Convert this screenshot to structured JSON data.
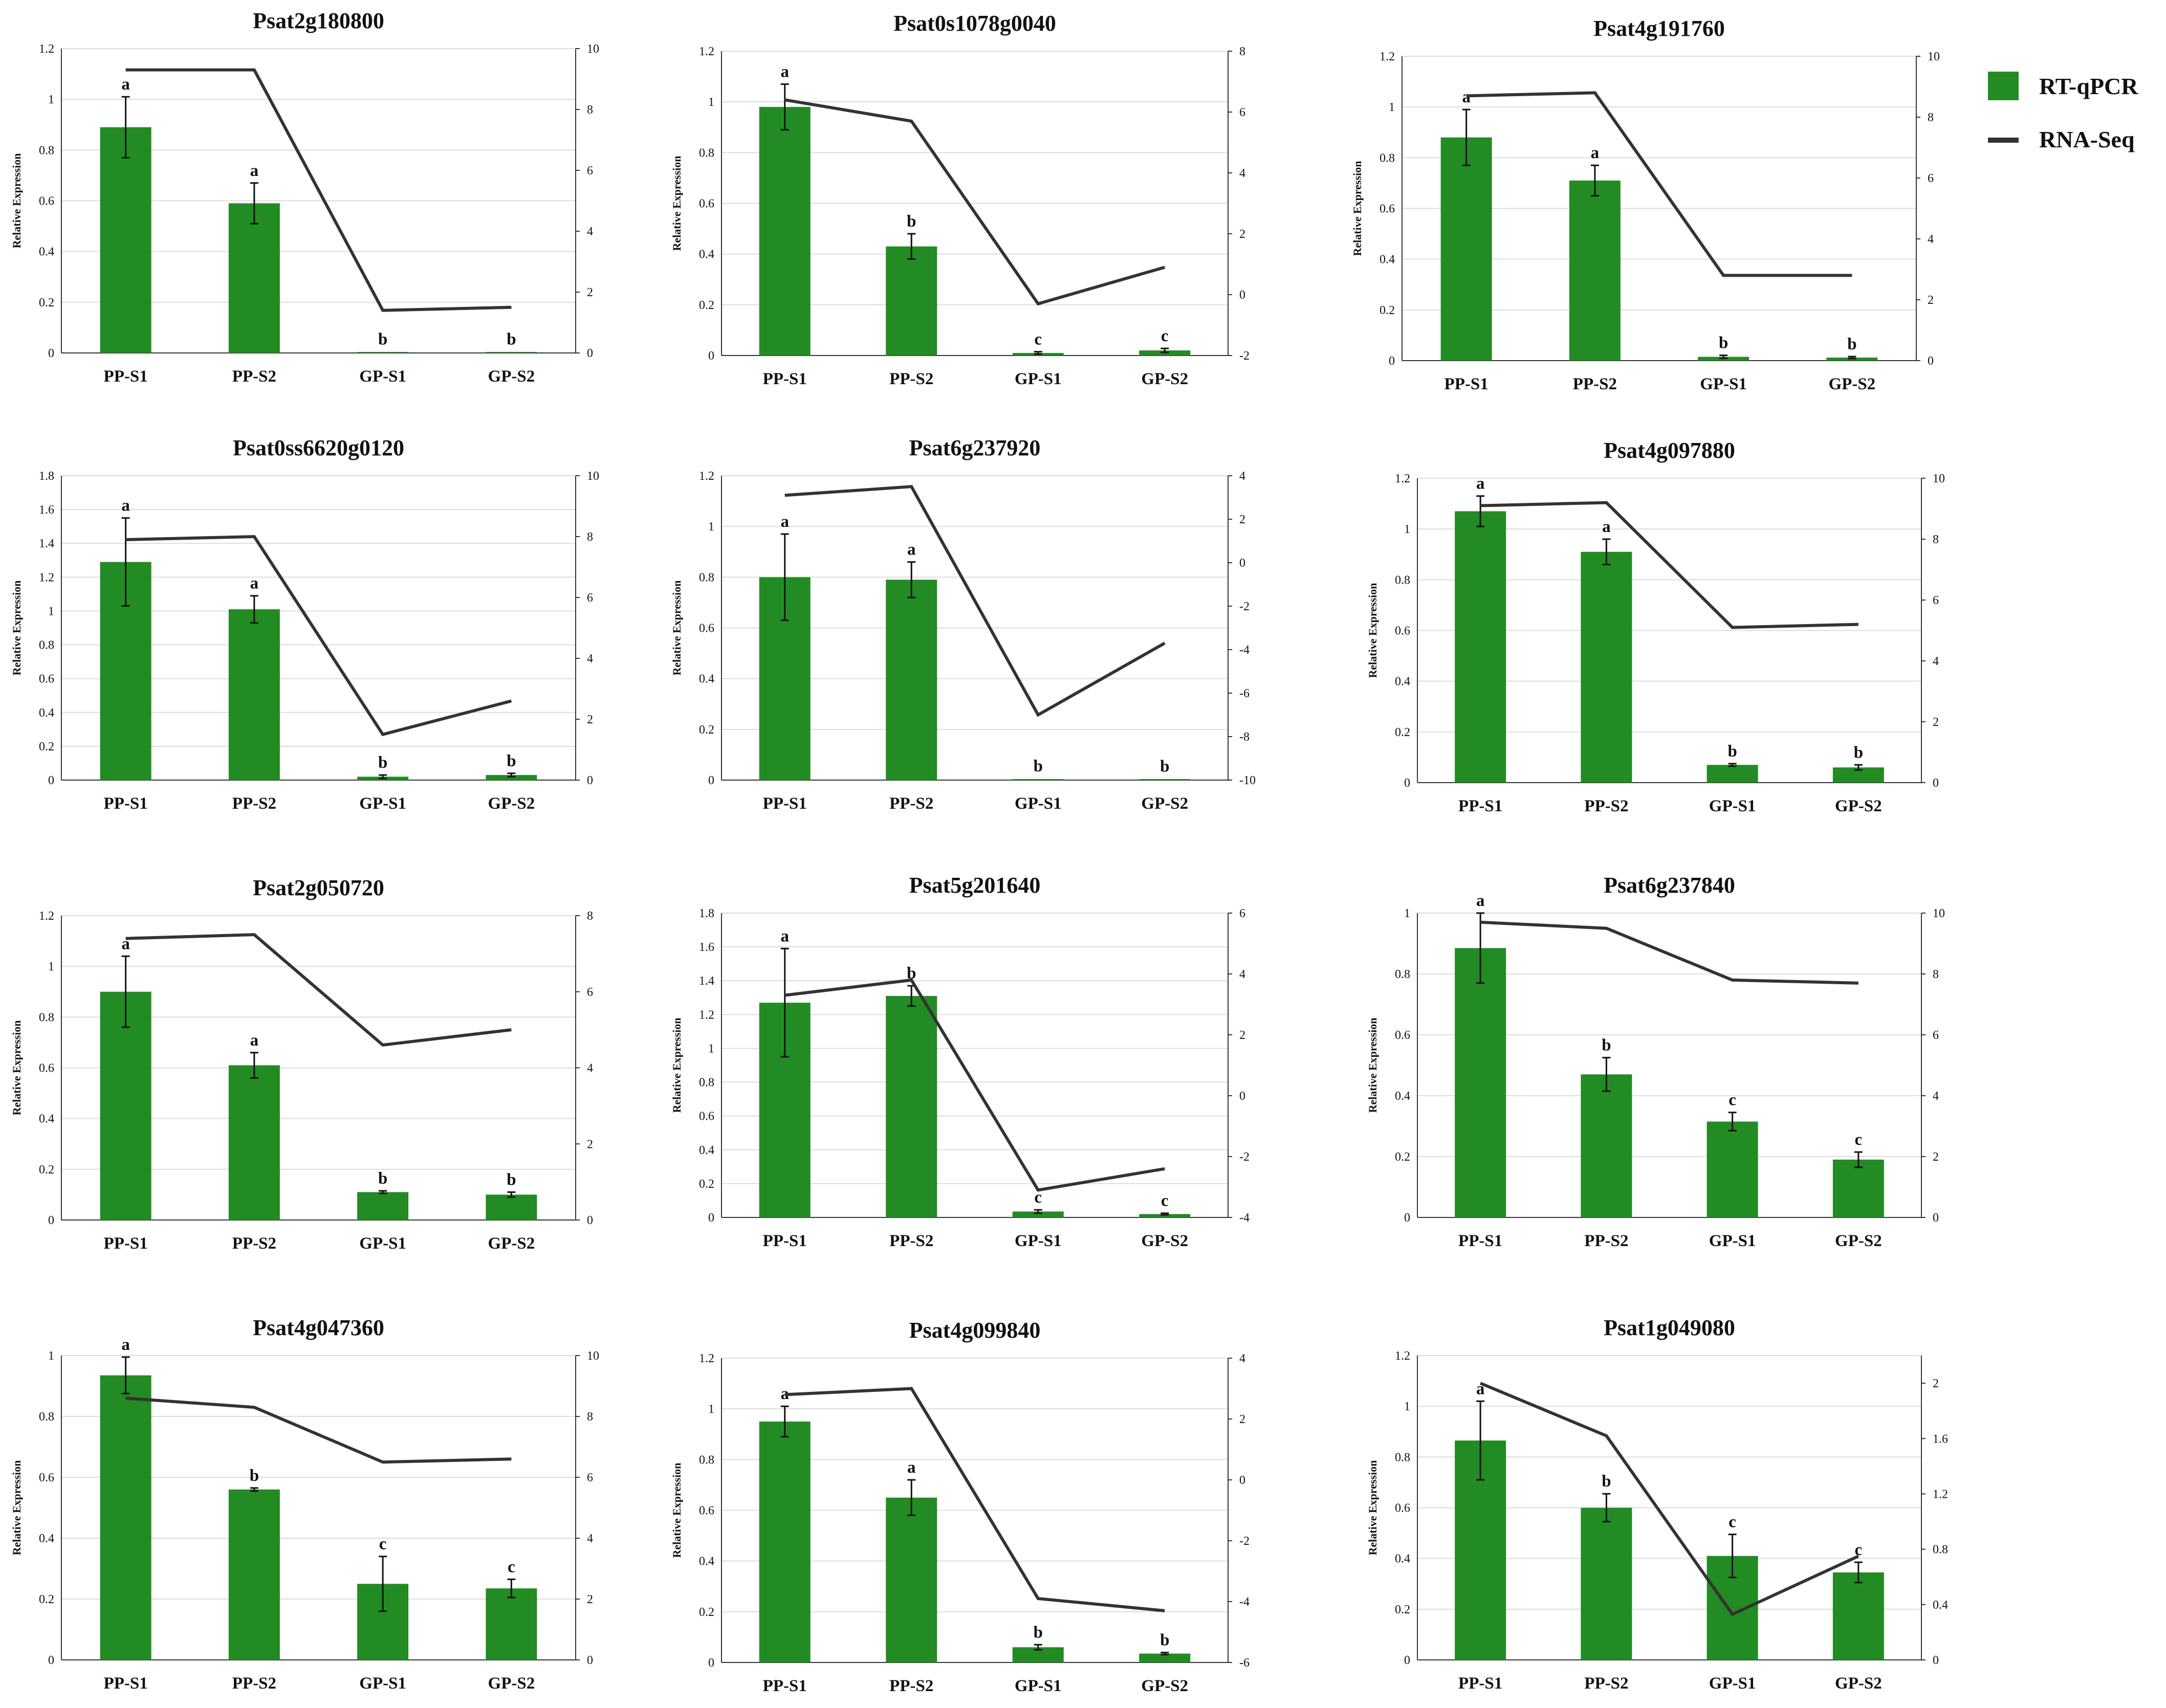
{
  "colors": {
    "bar": "#238b23",
    "line": "#333333"
  },
  "legend": [
    {
      "label": "RT-qPCR",
      "kind": "bar"
    },
    {
      "label": "RNA-Seq",
      "kind": "line"
    }
  ],
  "chart_data": [
    {
      "type": "bar+line",
      "title": "Psat2g180800",
      "ylabel": "Relative Expression",
      "categories": [
        "PP-S1",
        "PP-S2",
        "GP-S1",
        "GP-S2"
      ],
      "yticks": [
        "0",
        "0.2",
        "0.4",
        "0.6",
        "0.8",
        "1",
        "1.2"
      ],
      "ylim": [
        0,
        1.2
      ],
      "y2ticks": [
        "0",
        "2",
        "4",
        "6",
        "8",
        "10"
      ],
      "y2lim": [
        0,
        10
      ],
      "series": [
        {
          "name": "RT-qPCR",
          "axis": "left",
          "values": [
            0.89,
            0.59,
            0.003,
            0.003
          ],
          "errors": [
            0.12,
            0.08,
            0.002,
            0.002
          ],
          "labels": [
            "a",
            "a",
            "b",
            "b"
          ]
        },
        {
          "name": "RNA-Seq",
          "axis": "right",
          "values": [
            9.3,
            9.3,
            1.4,
            1.5
          ]
        }
      ]
    },
    {
      "type": "bar+line",
      "title": "Psat0s1078g0040",
      "ylabel": "Relative Expression",
      "categories": [
        "PP-S1",
        "PP-S2",
        "GP-S1",
        "GP-S2"
      ],
      "yticks": [
        "0",
        "0.2",
        "0.4",
        "0.6",
        "0.8",
        "1",
        "1.2"
      ],
      "ylim": [
        0,
        1.2
      ],
      "y2ticks": [
        "-2",
        "0",
        "2",
        "4",
        "6",
        "8"
      ],
      "y2lim": [
        -2,
        8
      ],
      "series": [
        {
          "name": "RT-qPCR",
          "axis": "left",
          "values": [
            0.98,
            0.43,
            0.01,
            0.02
          ],
          "errors": [
            0.09,
            0.05,
            0.005,
            0.008
          ],
          "labels": [
            "a",
            "b",
            "c",
            "c"
          ]
        },
        {
          "name": "RNA-Seq",
          "axis": "right",
          "values": [
            6.4,
            5.7,
            -0.3,
            0.9
          ]
        }
      ]
    },
    {
      "type": "bar+line",
      "title": "Psat4g191760",
      "ylabel": "Relative Expression",
      "categories": [
        "PP-S1",
        "PP-S2",
        "GP-S1",
        "GP-S2"
      ],
      "yticks": [
        "0",
        "0.2",
        "0.4",
        "0.6",
        "0.8",
        "1",
        "1.2"
      ],
      "ylim": [
        0,
        1.2
      ],
      "y2ticks": [
        "0",
        "2",
        "4",
        "6",
        "8",
        "10"
      ],
      "y2lim": [
        0,
        10
      ],
      "series": [
        {
          "name": "RT-qPCR",
          "axis": "left",
          "values": [
            0.88,
            0.71,
            0.015,
            0.012
          ],
          "errors": [
            0.11,
            0.06,
            0.006,
            0.004
          ],
          "labels": [
            "a",
            "a",
            "b",
            "b"
          ]
        },
        {
          "name": "RNA-Seq",
          "axis": "right",
          "values": [
            8.7,
            8.8,
            2.8,
            2.8
          ]
        }
      ]
    },
    {
      "type": "bar+line",
      "title": "Psat0ss6620g0120",
      "ylabel": "Relative Expression",
      "categories": [
        "PP-S1",
        "PP-S2",
        "GP-S1",
        "GP-S2"
      ],
      "yticks": [
        "0",
        "0.2",
        "0.4",
        "0.6",
        "0.8",
        "1",
        "1.2",
        "1.4",
        "1.6",
        "1.8"
      ],
      "ylim": [
        0,
        1.8
      ],
      "y2ticks": [
        "0",
        "2",
        "4",
        "6",
        "8",
        "10"
      ],
      "y2lim": [
        0,
        10
      ],
      "series": [
        {
          "name": "RT-qPCR",
          "axis": "left",
          "values": [
            1.29,
            1.01,
            0.02,
            0.03
          ],
          "errors": [
            0.26,
            0.08,
            0.01,
            0.01
          ],
          "labels": [
            "a",
            "a",
            "b",
            "b"
          ]
        },
        {
          "name": "RNA-Seq",
          "axis": "right",
          "values": [
            7.9,
            8.0,
            1.5,
            2.6
          ]
        }
      ]
    },
    {
      "type": "bar+line",
      "title": "Psat6g237920",
      "ylabel": "Relative Expression",
      "categories": [
        "PP-S1",
        "PP-S2",
        "GP-S1",
        "GP-S2"
      ],
      "yticks": [
        "0",
        "0.2",
        "0.4",
        "0.6",
        "0.8",
        "1",
        "1.2"
      ],
      "ylim": [
        0,
        1.2
      ],
      "y2ticks": [
        "-10",
        "-8",
        "-6",
        "-4",
        "-2",
        "0",
        "2",
        "4"
      ],
      "y2lim": [
        -10,
        4
      ],
      "series": [
        {
          "name": "RT-qPCR",
          "axis": "left",
          "values": [
            0.8,
            0.79,
            0.004,
            0.003
          ],
          "errors": [
            0.17,
            0.07,
            0.002,
            0.002
          ],
          "labels": [
            "a",
            "a",
            "b",
            "b"
          ]
        },
        {
          "name": "RNA-Seq",
          "axis": "right",
          "values": [
            3.1,
            3.5,
            -7.0,
            -3.7
          ]
        }
      ]
    },
    {
      "type": "bar+line",
      "title": "Psat4g097880",
      "ylabel": "Relative Expression",
      "categories": [
        "PP-S1",
        "PP-S2",
        "GP-S1",
        "GP-S2"
      ],
      "yticks": [
        "0",
        "0.2",
        "0.4",
        "0.6",
        "0.8",
        "1",
        "1.2"
      ],
      "ylim": [
        0,
        1.2
      ],
      "y2ticks": [
        "0",
        "2",
        "4",
        "6",
        "8",
        "10"
      ],
      "y2lim": [
        0,
        10
      ],
      "series": [
        {
          "name": "RT-qPCR",
          "axis": "left",
          "values": [
            1.07,
            0.91,
            0.07,
            0.06
          ],
          "errors": [
            0.06,
            0.05,
            0.005,
            0.01
          ],
          "labels": [
            "a",
            "a",
            "b",
            "b"
          ]
        },
        {
          "name": "RNA-Seq",
          "axis": "right",
          "values": [
            9.1,
            9.2,
            5.1,
            5.2
          ]
        }
      ]
    },
    {
      "type": "bar+line",
      "title": "Psat2g050720",
      "ylabel": "Relative Expression",
      "categories": [
        "PP-S1",
        "PP-S2",
        "GP-S1",
        "GP-S2"
      ],
      "yticks": [
        "0",
        "0.2",
        "0.4",
        "0.6",
        "0.8",
        "1",
        "1.2"
      ],
      "ylim": [
        0,
        1.2
      ],
      "y2ticks": [
        "0",
        "2",
        "4",
        "6",
        "8"
      ],
      "y2lim": [
        0,
        8
      ],
      "series": [
        {
          "name": "RT-qPCR",
          "axis": "left",
          "values": [
            0.9,
            0.61,
            0.11,
            0.1
          ],
          "errors": [
            0.14,
            0.05,
            0.005,
            0.01
          ],
          "labels": [
            "a",
            "a",
            "b",
            "b"
          ]
        },
        {
          "name": "RNA-Seq",
          "axis": "right",
          "values": [
            7.4,
            7.5,
            4.6,
            5.0
          ]
        }
      ]
    },
    {
      "type": "bar+line",
      "title": "Psat5g201640",
      "ylabel": "Relative Expression",
      "categories": [
        "PP-S1",
        "PP-S2",
        "GP-S1",
        "GP-S2"
      ],
      "yticks": [
        "0",
        "0.2",
        "0.4",
        "0.6",
        "0.8",
        "1",
        "1.2",
        "1.4",
        "1.6",
        "1.8"
      ],
      "ylim": [
        0,
        1.8
      ],
      "y2ticks": [
        "-4",
        "-2",
        "0",
        "2",
        "4",
        "6"
      ],
      "y2lim": [
        -4,
        6
      ],
      "series": [
        {
          "name": "RT-qPCR",
          "axis": "left",
          "values": [
            1.27,
            1.31,
            0.035,
            0.02
          ],
          "errors": [
            0.32,
            0.06,
            0.01,
            0.005
          ],
          "labels": [
            "a",
            "b",
            "c",
            "c"
          ]
        },
        {
          "name": "RNA-Seq",
          "axis": "right",
          "values": [
            3.3,
            3.8,
            -3.1,
            -2.4
          ]
        }
      ]
    },
    {
      "type": "bar+line",
      "title": "Psat6g237840",
      "ylabel": "Relative Expression",
      "categories": [
        "PP-S1",
        "PP-S2",
        "GP-S1",
        "GP-S2"
      ],
      "yticks": [
        "0",
        "0.2",
        "0.4",
        "0.6",
        "0.8",
        "1"
      ],
      "ylim": [
        0,
        1
      ],
      "y2ticks": [
        "0",
        "2",
        "4",
        "6",
        "8",
        "10"
      ],
      "y2lim": [
        0,
        10
      ],
      "series": [
        {
          "name": "RT-qPCR",
          "axis": "left",
          "values": [
            0.885,
            0.47,
            0.315,
            0.19
          ],
          "errors": [
            0.115,
            0.055,
            0.03,
            0.025
          ],
          "labels": [
            "a",
            "b",
            "c",
            "c"
          ]
        },
        {
          "name": "RNA-Seq",
          "axis": "right",
          "values": [
            9.7,
            9.5,
            7.8,
            7.7
          ]
        }
      ]
    },
    {
      "type": "bar+line",
      "title": "Psat4g047360",
      "ylabel": "Relative Expression",
      "categories": [
        "PP-S1",
        "PP-S2",
        "GP-S1",
        "GP-S2"
      ],
      "yticks": [
        "0",
        "0.2",
        "0.4",
        "0.6",
        "0.8",
        "1"
      ],
      "ylim": [
        0,
        1
      ],
      "y2ticks": [
        "0",
        "2",
        "4",
        "6",
        "8",
        "10"
      ],
      "y2lim": [
        0,
        10
      ],
      "series": [
        {
          "name": "RT-qPCR",
          "axis": "left",
          "values": [
            0.935,
            0.56,
            0.25,
            0.235
          ],
          "errors": [
            0.06,
            0.005,
            0.09,
            0.03
          ],
          "labels": [
            "a",
            "b",
            "c",
            "c"
          ]
        },
        {
          "name": "RNA-Seq",
          "axis": "right",
          "values": [
            8.6,
            8.3,
            6.5,
            6.6
          ]
        }
      ]
    },
    {
      "type": "bar+line",
      "title": "Psat4g099840",
      "ylabel": "Relative Expression",
      "categories": [
        "PP-S1",
        "PP-S2",
        "GP-S1",
        "GP-S2"
      ],
      "yticks": [
        "0",
        "0.2",
        "0.4",
        "0.6",
        "0.8",
        "1",
        "1.2"
      ],
      "ylim": [
        0,
        1.2
      ],
      "y2ticks": [
        "-6",
        "-4",
        "-2",
        "0",
        "2",
        "4"
      ],
      "y2lim": [
        -6,
        4
      ],
      "series": [
        {
          "name": "RT-qPCR",
          "axis": "left",
          "values": [
            0.95,
            0.65,
            0.06,
            0.035
          ],
          "errors": [
            0.06,
            0.07,
            0.01,
            0.004
          ],
          "labels": [
            "a",
            "a",
            "b",
            "b"
          ]
        },
        {
          "name": "RNA-Seq",
          "axis": "right",
          "values": [
            2.8,
            3.0,
            -3.9,
            -4.3
          ]
        }
      ]
    },
    {
      "type": "bar+line",
      "title": "Psat1g049080",
      "ylabel": "Relative Expression",
      "categories": [
        "PP-S1",
        "PP-S2",
        "GP-S1",
        "GP-S2"
      ],
      "yticks": [
        "0",
        "0.2",
        "0.4",
        "0.6",
        "0.8",
        "1",
        "1.2"
      ],
      "ylim": [
        0,
        1.2
      ],
      "y2ticks": [
        "0",
        "0.4",
        "0.8",
        "1.2",
        "1.6",
        "2"
      ],
      "y2lim": [
        0,
        2.2
      ],
      "series": [
        {
          "name": "RT-qPCR",
          "axis": "left",
          "values": [
            0.865,
            0.6,
            0.41,
            0.345
          ],
          "errors": [
            0.155,
            0.055,
            0.085,
            0.04
          ],
          "labels": [
            "a",
            "b",
            "c",
            "c"
          ]
        },
        {
          "name": "RNA-Seq",
          "axis": "right",
          "values": [
            2.0,
            1.62,
            0.33,
            0.75
          ]
        }
      ]
    }
  ]
}
